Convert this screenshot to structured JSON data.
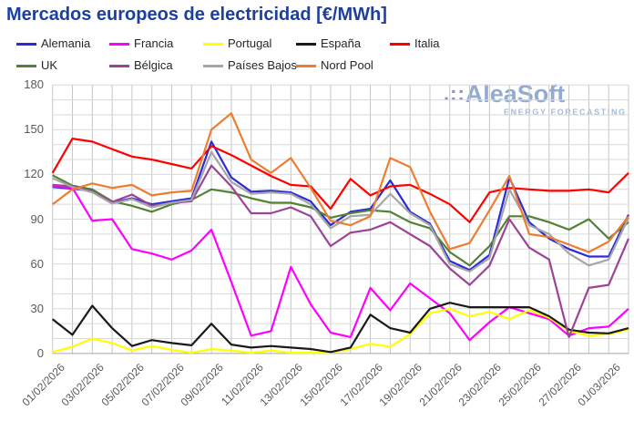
{
  "title": "Mercados europeos de electricidad [€/MWh]",
  "watermark": {
    "logo_prefix": ".::",
    "logo_text": "AleaSoft",
    "tagline": "ENERGY FORECASTING"
  },
  "colors": {
    "title": "#1c3fa0",
    "grid_horizontal": "#d9d9d9",
    "grid_vertical": "#c6c6c6",
    "axis": "#a6a6a6",
    "tick_label": "#595959"
  },
  "chart_data": {
    "type": "line",
    "title": "Mercados europeos de electricidad [€/MWh]",
    "xlabel": "",
    "ylabel": "",
    "ylim": [
      0,
      180
    ],
    "y_ticks": [
      0,
      30,
      60,
      90,
      120,
      150,
      180
    ],
    "y_minor_step": 10,
    "grid": true,
    "legend_position": "top",
    "x": [
      "01/02/2026",
      "02/02/2026",
      "03/02/2026",
      "04/02/2026",
      "05/02/2026",
      "06/02/2026",
      "07/02/2026",
      "08/02/2026",
      "09/02/2026",
      "10/02/2026",
      "11/02/2026",
      "12/02/2026",
      "13/02/2026",
      "14/02/2026",
      "15/02/2026",
      "16/02/2026",
      "17/02/2026",
      "18/02/2026",
      "19/02/2026",
      "20/02/2026",
      "21/02/2026",
      "22/02/2026",
      "23/02/2026",
      "24/02/2026",
      "25/02/2026",
      "26/02/2026",
      "27/02/2026",
      "28/02/2026",
      "01/03/2026",
      "02/03/2026"
    ],
    "x_tick_labels": [
      "01/02/2026",
      "03/02/2026",
      "05/02/2026",
      "07/02/2026",
      "09/02/2026",
      "11/02/2026",
      "13/02/2026",
      "15/02/2026",
      "17/02/2026",
      "19/02/2026",
      "21/02/2026",
      "23/02/2026",
      "25/02/2026",
      "27/02/2026",
      "01/03/2026"
    ],
    "series": [
      {
        "name": "Alemania",
        "color": "#2b2bd9",
        "values": [
          111.5,
          110.5,
          109,
          101,
          104,
          100,
          102,
          104,
          142,
          118,
          108.5,
          109,
          108,
          102,
          86,
          95,
          97,
          116,
          95,
          87,
          62,
          56,
          66,
          118,
          88,
          77,
          70,
          65,
          65,
          93
        ]
      },
      {
        "name": "Francia",
        "color": "#ff00ff",
        "values": [
          112,
          111,
          89,
          90,
          70,
          67,
          63,
          69,
          83,
          48,
          12,
          15,
          58,
          33,
          14,
          11,
          44,
          29,
          47,
          37,
          27,
          9,
          21,
          31,
          27,
          23,
          12,
          17,
          18,
          30
        ]
      },
      {
        "name": "Portugal",
        "color": "#ffff00",
        "values": [
          1,
          4.5,
          10,
          7,
          2,
          5,
          2.5,
          0.5,
          3,
          2,
          0.5,
          2,
          0.5,
          0.5,
          0.5,
          3,
          6.5,
          4.5,
          13,
          27,
          30,
          25,
          28,
          23,
          29,
          24,
          15,
          12,
          13,
          16
        ]
      },
      {
        "name": "España",
        "color": "#1a1a1a",
        "values": [
          23,
          12.5,
          32,
          17,
          5,
          9,
          7,
          5.5,
          20,
          6,
          4,
          5,
          4,
          3,
          1,
          4,
          26,
          17,
          14,
          30,
          34,
          31,
          31,
          31,
          31,
          25,
          16,
          14,
          13.5,
          17
        ]
      },
      {
        "name": "Italia",
        "color": "#ff0000",
        "values": [
          121,
          144,
          142,
          137,
          132,
          130,
          127,
          124,
          139,
          133,
          126,
          119,
          113,
          112,
          97,
          117,
          106,
          112,
          113,
          107,
          100,
          88,
          108,
          111,
          110,
          109,
          109,
          110,
          108,
          121
        ]
      },
      {
        "name": "UK",
        "color": "#538135",
        "values": [
          119.5,
          112.5,
          110,
          102,
          99,
          95,
          100,
          103,
          110,
          108,
          104,
          101,
          101,
          98,
          91,
          94,
          96,
          95,
          88,
          84,
          68,
          59,
          72,
          92,
          92,
          88,
          83,
          90,
          77,
          88
        ]
      },
      {
        "name": "Bélgica",
        "color": "#9c4398",
        "values": [
          113,
          112,
          108.5,
          101.5,
          106.5,
          99,
          101,
          102,
          126,
          112,
          94,
          94,
          98,
          92,
          72,
          81,
          83,
          88,
          80,
          72,
          57,
          46,
          59,
          90,
          71,
          63,
          11,
          44,
          46,
          77
        ]
      },
      {
        "name": "Países Bajos",
        "color": "#a6a6a6",
        "values": [
          117.5,
          111.5,
          108,
          100.5,
          103.5,
          98,
          101,
          103,
          135,
          115,
          107,
          108,
          107,
          100,
          84,
          92,
          93,
          107,
          94,
          86,
          60,
          55,
          64,
          110,
          86,
          80,
          67,
          59,
          63,
          91
        ]
      },
      {
        "name": "Nord Pool",
        "color": "#ed7d31",
        "values": [
          100,
          110,
          114,
          111,
          113,
          106,
          108,
          109,
          150,
          161,
          130,
          121,
          131,
          111,
          89,
          86,
          92,
          131,
          125,
          95,
          70,
          74,
          96,
          119,
          80,
          78,
          73,
          68,
          75,
          92
        ]
      }
    ]
  }
}
